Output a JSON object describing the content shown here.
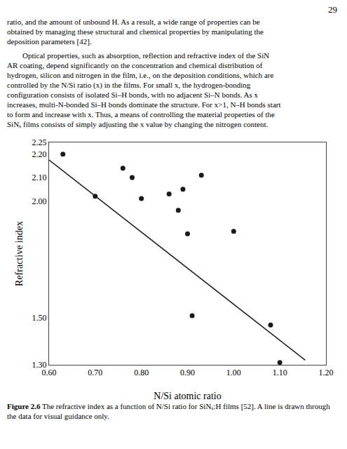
{
  "chart_data": {
    "type": "scatter",
    "annotations": [
      "29",
      "ratio, and the amount of unbound H. As a result, a wide range of properties can be",
      "obtained by managing these structural and chemical properties by manipulating the",
      "deposition parameters [42].",
      "        Optical properties, such as absorption, reflection and refractive index of the SiN",
      "AR coating, depend significantly on the concentration and chemical distribution of",
      "hydrogen, silicon and nitrogen in the film, i.e., on the deposition conditions, which are",
      "controlled by the N/Si ratio (x) in the films. For small x, the hydrogen-bonding",
      "configuration consists of isolated Si–H bonds, with no adjacent Si–N bonds. As x",
      "increases, multi-N-bonded Si–H bonds dominate the structure. For x>1, N–H bonds start",
      "to form and increase with x. Thus, a means of controlling the material properties of the",
      "SiNₓ films consists of simply adjusting the x value by changing the nitrogen content."
    ],
    "title": "Figure 2.6 The refractive index as a function of N/Si ratio for SiNₓ:H films [52]. A line is drawn through the data for visual guidance only.",
    "xlabel": "N/Si atomic ratio",
    "ylabel": "Refractive index",
    "series": [
      {
        "type": "scatter",
        "marker": "circle",
        "color": "#1a1a1a",
        "x": [
          0.63,
          0.7,
          0.76,
          0.78,
          0.8,
          0.86,
          0.88,
          0.89,
          0.9,
          0.91,
          0.93,
          1.0,
          1.08,
          1.1
        ],
        "values": [
          2.2,
          2.02,
          2.14,
          2.1,
          2.01,
          2.03,
          1.96,
          2.05,
          1.86,
          1.51,
          2.11,
          1.87,
          1.47,
          1.31
        ]
      },
      {
        "type": "line",
        "line_style": "solid",
        "color": "#1a1a1a",
        "x": [
          0.6,
          1.155
        ],
        "values": [
          2.175,
          1.32
        ]
      }
    ],
    "xlim": [
      0.6,
      1.2
    ],
    "ylim": [
      1.3,
      2.25
    ],
    "xticks": [
      {
        "value": 0.6,
        "label": "0.60"
      },
      {
        "value": 0.7,
        "label": "0.70"
      },
      {
        "value": 0.8,
        "label": "0.80"
      },
      {
        "value": 0.9,
        "label": "0.90"
      },
      {
        "value": 1.0,
        "label": "1.00"
      },
      {
        "value": 1.1,
        "label": "1.10"
      },
      {
        "value": 1.2,
        "label": "1.20"
      }
    ],
    "yticks": [
      {
        "value": 1.3,
        "label": "1.30"
      },
      {
        "value": 1.5,
        "label": "1.50"
      },
      {
        "value": 2.0,
        "label": "2.00"
      },
      {
        "value": 2.1,
        "label": "2.10"
      },
      {
        "value": 2.2,
        "label": "2.20"
      },
      2.25
    ],
    "grid": false
  }
}
